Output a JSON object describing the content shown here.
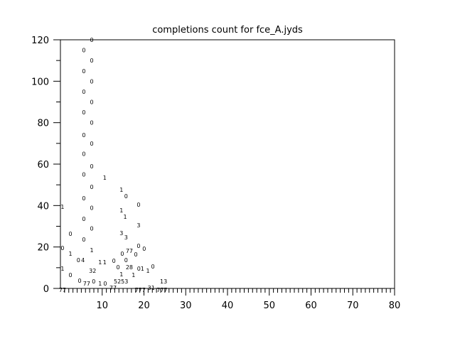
{
  "chart_data": {
    "type": "scatter",
    "title": "completions count for fce_A.jyds",
    "xlabel": "",
    "ylabel": "",
    "xlim": [
      0,
      80
    ],
    "ylim": [
      0,
      120
    ],
    "x_ticks": [
      10,
      20,
      30,
      40,
      50,
      60,
      70,
      80
    ],
    "y_ticks": [
      0,
      20,
      40,
      60,
      80,
      100,
      120
    ],
    "x_minor_step": 1,
    "y_minor_step": 10,
    "grid": false,
    "marker_style": "text labels",
    "points": [
      {
        "x": 7.5,
        "y": 120,
        "label": "0"
      },
      {
        "x": 7.5,
        "y": 110,
        "label": "0"
      },
      {
        "x": 7.5,
        "y": 100,
        "label": "0"
      },
      {
        "x": 7.5,
        "y": 90,
        "label": "0"
      },
      {
        "x": 7.5,
        "y": 80,
        "label": "0"
      },
      {
        "x": 7.5,
        "y": 70,
        "label": "0"
      },
      {
        "x": 7.5,
        "y": 59,
        "label": "0"
      },
      {
        "x": 7.5,
        "y": 49,
        "label": "0"
      },
      {
        "x": 7.5,
        "y": 39,
        "label": "0"
      },
      {
        "x": 7.5,
        "y": 29,
        "label": "0"
      },
      {
        "x": 7.5,
        "y": 18.5,
        "label": "1"
      },
      {
        "x": 5.6,
        "y": 115,
        "label": "0"
      },
      {
        "x": 5.6,
        "y": 105,
        "label": "0"
      },
      {
        "x": 5.6,
        "y": 95,
        "label": "0"
      },
      {
        "x": 5.6,
        "y": 85,
        "label": "0"
      },
      {
        "x": 5.6,
        "y": 74,
        "label": "0"
      },
      {
        "x": 5.6,
        "y": 65,
        "label": "0"
      },
      {
        "x": 5.6,
        "y": 55,
        "label": "0"
      },
      {
        "x": 5.6,
        "y": 43.5,
        "label": "0"
      },
      {
        "x": 5.6,
        "y": 33.6,
        "label": "0"
      },
      {
        "x": 5.6,
        "y": 23.7,
        "label": "0"
      },
      {
        "x": 10.6,
        "y": 53.5,
        "label": "1"
      },
      {
        "x": 14.6,
        "y": 47.7,
        "label": "1"
      },
      {
        "x": 15.7,
        "y": 44.6,
        "label": "0"
      },
      {
        "x": 18.7,
        "y": 40.5,
        "label": "0"
      },
      {
        "x": 0.5,
        "y": 39.4,
        "label": "1"
      },
      {
        "x": 14.6,
        "y": 37.7,
        "label": "1"
      },
      {
        "x": 15.5,
        "y": 34.6,
        "label": "1"
      },
      {
        "x": 18.7,
        "y": 30.5,
        "label": "3"
      },
      {
        "x": 2.4,
        "y": 26.4,
        "label": "0"
      },
      {
        "x": 14.6,
        "y": 26.7,
        "label": "3"
      },
      {
        "x": 15.7,
        "y": 24.7,
        "label": "3"
      },
      {
        "x": 0.5,
        "y": 19.5,
        "label": "0"
      },
      {
        "x": 18.7,
        "y": 20.6,
        "label": "0"
      },
      {
        "x": 19.7,
        "y": 19.2,
        "label": "0"
      },
      {
        "x": 2.4,
        "y": 16.8,
        "label": "1"
      },
      {
        "x": 14.8,
        "y": 16.8,
        "label": "0"
      },
      {
        "x": 16.5,
        "y": 18.2,
        "label": "77"
      },
      {
        "x": 17.7,
        "y": 16.5,
        "label": "0"
      },
      {
        "x": 4.3,
        "y": 13.7,
        "label": "0"
      },
      {
        "x": 5.4,
        "y": 13.7,
        "label": "4"
      },
      {
        "x": 9.5,
        "y": 12.7,
        "label": "1"
      },
      {
        "x": 10.6,
        "y": 12.7,
        "label": "1"
      },
      {
        "x": 12.8,
        "y": 13.4,
        "label": "0"
      },
      {
        "x": 13.8,
        "y": 14.4,
        "label": "0"
      },
      {
        "x": 15.7,
        "y": 14.4,
        "label": "0"
      },
      {
        "x": 0.5,
        "y": 9.6,
        "label": "1"
      },
      {
        "x": 7.7,
        "y": 8.6,
        "label": "32"
      },
      {
        "x": 19.2,
        "y": 9.6,
        "label": "01"
      },
      {
        "x": 20.6,
        "y": 8.6,
        "label": "1"
      },
      {
        "x": 21.8,
        "y": 10.6,
        "label": "0"
      },
      {
        "x": 16.5,
        "y": 10.3,
        "label": "28"
      },
      {
        "x": 17.5,
        "y": 8.6,
        "label": "1"
      },
      {
        "x": 14.6,
        "y": 6.9,
        "label": "1"
      },
      {
        "x": 2.4,
        "y": 6.5,
        "label": "0"
      },
      {
        "x": 14.5,
        "y": 4.8,
        "label": "5253"
      },
      {
        "x": 24.7,
        "y": 3.4,
        "label": "13"
      },
      {
        "x": 4.6,
        "y": 3.8,
        "label": "0"
      },
      {
        "x": 5.6,
        "y": 2.4,
        "label": "77"
      },
      {
        "x": 6.6,
        "y": 3.4,
        "label": "0"
      },
      {
        "x": 9.5,
        "y": 2.4,
        "label": "1"
      },
      {
        "x": 10.7,
        "y": 2.4,
        "label": "0"
      },
      {
        "x": 12.6,
        "y": 2.4,
        "label": "77"
      },
      {
        "x": 0.5,
        "y": -0.7,
        "label": "77"
      },
      {
        "x": 19.1,
        "y": -0.7,
        "label": "777"
      },
      {
        "x": 21.4,
        "y": 0.3,
        "label": "31"
      },
      {
        "x": 23.3,
        "y": -0.7,
        "label": "777"
      }
    ]
  }
}
